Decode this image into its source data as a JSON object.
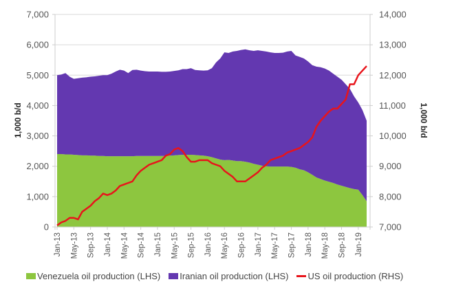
{
  "chart_data": {
    "type": "area",
    "stacked": true,
    "title": "",
    "ylabel_left": "1,000 b/d",
    "ylabel_right": "1,000 b/d",
    "ylim_left": [
      0,
      7000
    ],
    "ylim_right": [
      7000,
      14000
    ],
    "yticks_left": [
      "0",
      "1,000",
      "2,000",
      "3,000",
      "4,000",
      "5,000",
      "6,000",
      "7,000"
    ],
    "yticks_right": [
      "7,000",
      "8,000",
      "9,000",
      "10,000",
      "11,000",
      "12,000",
      "13,000",
      "14,000"
    ],
    "x_start": "Jan-13",
    "x_end": "Mar-19",
    "x_tick_labels": [
      "Jan-13",
      "May-13",
      "Sep-13",
      "Jan-14",
      "May-14",
      "Sep-14",
      "Jan-15",
      "May-15",
      "Sep-15",
      "Jan-16",
      "May-16",
      "Sep-16",
      "Jan-17",
      "May-17",
      "Sep-17",
      "Jan-18",
      "May-18",
      "Sep-18",
      "Jan-19"
    ],
    "grid": true,
    "legend_position": "bottom",
    "series": [
      {
        "name": "Venezuela oil production (LHS)",
        "type": "area",
        "axis": "left",
        "color": "#8DC63F",
        "values": [
          2400,
          2400,
          2390,
          2390,
          2380,
          2370,
          2360,
          2360,
          2350,
          2350,
          2340,
          2340,
          2330,
          2330,
          2330,
          2330,
          2330,
          2330,
          2330,
          2340,
          2340,
          2340,
          2340,
          2340,
          2340,
          2340,
          2340,
          2350,
          2360,
          2370,
          2380,
          2380,
          2380,
          2370,
          2360,
          2350,
          2330,
          2300,
          2260,
          2220,
          2200,
          2210,
          2190,
          2170,
          2170,
          2150,
          2120,
          2080,
          2050,
          2020,
          2000,
          1990,
          1990,
          1990,
          1990,
          1990,
          1980,
          1950,
          1900,
          1870,
          1800,
          1720,
          1630,
          1580,
          1530,
          1490,
          1450,
          1400,
          1360,
          1320,
          1280,
          1250,
          1230,
          1050,
          850
        ]
      },
      {
        "name": "Iranian oil production (LHS)",
        "type": "area",
        "axis": "left",
        "color": "#6338B0",
        "values": [
          2600,
          2620,
          2680,
          2560,
          2500,
          2530,
          2560,
          2570,
          2600,
          2610,
          2640,
          2660,
          2670,
          2720,
          2790,
          2850,
          2820,
          2740,
          2840,
          2840,
          2810,
          2790,
          2780,
          2780,
          2780,
          2770,
          2770,
          2770,
          2780,
          2790,
          2820,
          2820,
          2850,
          2800,
          2800,
          2800,
          2830,
          2930,
          3160,
          3330,
          3550,
          3520,
          3590,
          3630,
          3660,
          3700,
          3700,
          3720,
          3770,
          3780,
          3780,
          3760,
          3740,
          3740,
          3750,
          3790,
          3820,
          3700,
          3700,
          3680,
          3650,
          3610,
          3650,
          3680,
          3690,
          3660,
          3600,
          3550,
          3490,
          3380,
          3270,
          3050,
          2870,
          2800,
          2650
        ]
      },
      {
        "name": "US oil production (RHS)",
        "type": "line",
        "axis": "right",
        "color": "#E8141B",
        "values": [
          7050,
          7150,
          7200,
          7300,
          7300,
          7250,
          7500,
          7600,
          7700,
          7850,
          7950,
          8100,
          8050,
          8100,
          8200,
          8350,
          8400,
          8450,
          8500,
          8700,
          8850,
          8950,
          9050,
          9100,
          9150,
          9200,
          9350,
          9400,
          9550,
          9600,
          9500,
          9300,
          9150,
          9150,
          9200,
          9200,
          9200,
          9100,
          9050,
          9000,
          8850,
          8750,
          8650,
          8500,
          8500,
          8500,
          8600,
          8700,
          8800,
          8950,
          9050,
          9200,
          9250,
          9300,
          9350,
          9450,
          9500,
          9550,
          9600,
          9700,
          9800,
          9950,
          10300,
          10500,
          10650,
          10800,
          10900,
          10900,
          11050,
          11200,
          11700,
          11700,
          12000,
          12150,
          12300
        ]
      }
    ]
  }
}
